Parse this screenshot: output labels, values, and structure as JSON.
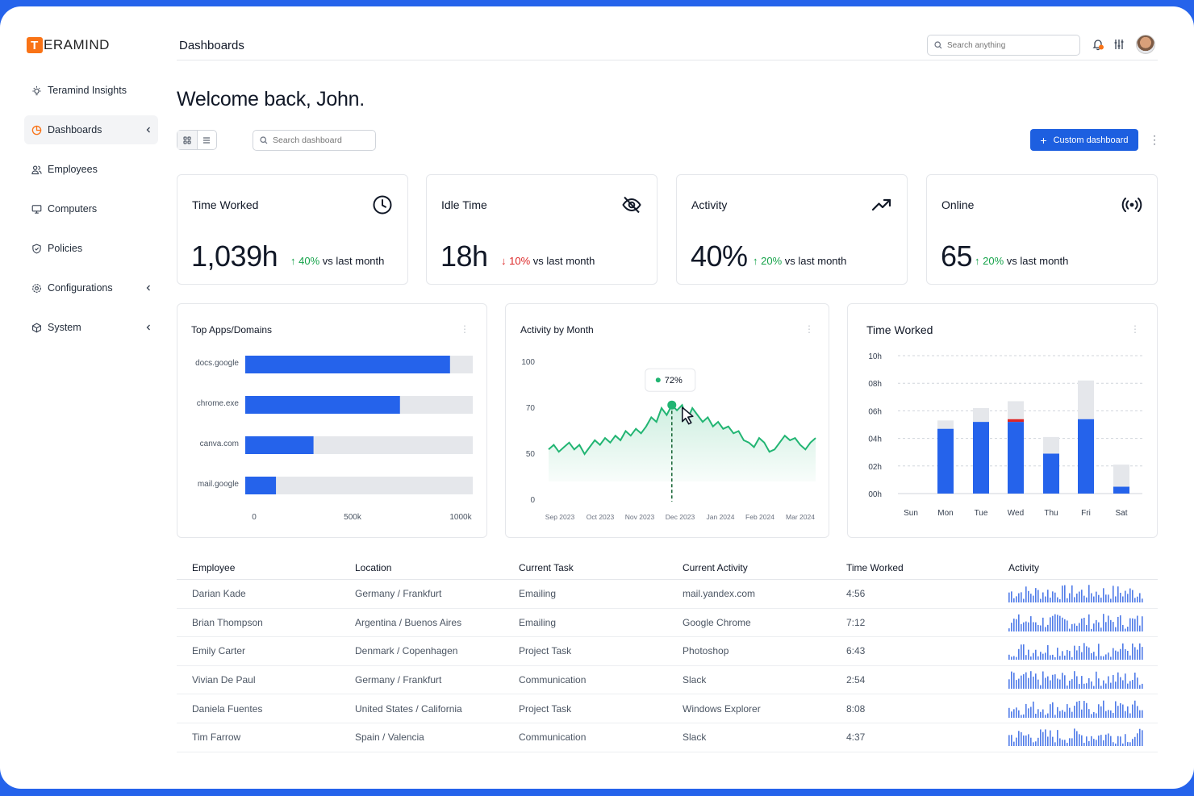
{
  "brand": {
    "logo_letter": "T",
    "logo_rest": "ERAMIND"
  },
  "sidebar": {
    "items": [
      {
        "label": "Teramind Insights",
        "icon": "lightbulb-icon",
        "active": false,
        "chevron": false
      },
      {
        "label": "Dashboards",
        "icon": "pie-chart-icon",
        "active": true,
        "chevron": true
      },
      {
        "label": "Employees",
        "icon": "users-icon",
        "active": false,
        "chevron": false
      },
      {
        "label": "Computers",
        "icon": "monitor-icon",
        "active": false,
        "chevron": false
      },
      {
        "label": "Policies",
        "icon": "shield-icon",
        "active": false,
        "chevron": false
      },
      {
        "label": "Configurations",
        "icon": "gear-icon",
        "active": false,
        "chevron": true
      },
      {
        "label": "System",
        "icon": "cube-icon",
        "active": false,
        "chevron": true
      }
    ]
  },
  "header": {
    "title": "Dashboards",
    "search_placeholder": "Search anything"
  },
  "welcome": "Welcome back, John.",
  "toolbar": {
    "search_placeholder": "Search dashboard",
    "custom_button": "Custom dashboard"
  },
  "kpis": [
    {
      "label": "Time Worked",
      "value": "1,039h",
      "change": "40%",
      "direction": "up",
      "suffix": "vs last month",
      "icon": "clock-icon"
    },
    {
      "label": "Idle Time",
      "value": "18h",
      "change": "10%",
      "direction": "down",
      "suffix": "vs last month",
      "icon": "eye-off-icon"
    },
    {
      "label": "Activity",
      "value": "40%",
      "change": "20%",
      "direction": "up",
      "suffix": "vs last month",
      "icon": "trending-up-icon"
    },
    {
      "label": "Online",
      "value": "65",
      "change": "20%",
      "direction": "up",
      "suffix": "vs last month",
      "icon": "broadcast-icon"
    }
  ],
  "colors": {
    "accent": "#2563eb",
    "up": "#16a34a",
    "down": "#dc2626",
    "green": "#22b573",
    "track": "#e5e7eb"
  },
  "chart_data": [
    {
      "type": "bar",
      "orientation": "horizontal",
      "title": "Top Apps/Domains",
      "categories": [
        "docs.google",
        "chrome.exe",
        "canva.com",
        "mail.google"
      ],
      "values": [
        900000,
        680000,
        300000,
        135000
      ],
      "xlim": [
        0,
        1000000
      ],
      "xtick_labels": [
        "0",
        "500k",
        "1000k"
      ]
    },
    {
      "type": "area",
      "title": "Activity by Month",
      "x_labels": [
        "Sep 2023",
        "Oct 2023",
        "Nov 2023",
        "Dec 2023",
        "Jan 2024",
        "Feb 2024",
        "Mar 2024"
      ],
      "y_ticks": [
        "100",
        "70",
        "50",
        "0"
      ],
      "values": [
        52,
        54,
        51,
        53,
        55,
        52,
        54,
        50,
        53,
        56,
        54,
        57,
        55,
        58,
        56,
        60,
        58,
        61,
        59,
        62,
        66,
        64,
        70,
        67,
        72,
        69,
        72,
        65,
        70,
        67,
        64,
        66,
        62,
        64,
        61,
        62,
        59,
        60,
        56,
        55,
        53,
        57,
        55,
        51,
        52,
        55,
        58,
        56,
        57,
        54,
        52,
        55,
        57
      ],
      "annotation": {
        "label": "72%",
        "x_label": "Dec 2023",
        "value": 72
      }
    },
    {
      "type": "bar",
      "stacked": true,
      "title": "Time Worked",
      "categories": [
        "Sun",
        "Mon",
        "Tue",
        "Wed",
        "Thu",
        "Fri",
        "Sat"
      ],
      "y_tick_labels": [
        "10h",
        "08h",
        "06h",
        "04h",
        "02h",
        "00h"
      ],
      "ylim": [
        0,
        10
      ],
      "series": [
        {
          "color": "#2563eb",
          "values": [
            0,
            4.7,
            5.2,
            5.2,
            2.9,
            5.4,
            0.5
          ]
        },
        {
          "color": "#dc2626",
          "values": [
            0,
            0,
            0,
            0.2,
            0,
            0,
            0
          ]
        },
        {
          "color": "#e5e7eb",
          "values": [
            0,
            0.6,
            1.0,
            1.3,
            1.2,
            2.8,
            1.6
          ]
        }
      ]
    }
  ],
  "table": {
    "headers": [
      "Employee",
      "Location",
      "Current Task",
      "Current Activity",
      "Time Worked",
      "Activity"
    ],
    "rows": [
      {
        "employee": "Darian Kade",
        "location": "Germany / Frankfurt",
        "task": "Emailing",
        "activity": "mail.yandex.com",
        "time": "4:56"
      },
      {
        "employee": "Brian Thompson",
        "location": "Argentina / Buenos Aires",
        "task": "Emailing",
        "activity": "Google Chrome",
        "time": "7:12"
      },
      {
        "employee": "Emily Carter",
        "location": "Denmark / Copenhagen",
        "task": "Project Task",
        "activity": "Photoshop",
        "time": "6:43"
      },
      {
        "employee": "Vivian De Paul",
        "location": "Germany / Frankfurt",
        "task": "Communication",
        "activity": "Slack",
        "time": "2:54"
      },
      {
        "employee": "Daniela Fuentes",
        "location": "United States / California",
        "task": "Project Task",
        "activity": "Windows Explorer",
        "time": "8:08"
      },
      {
        "employee": "Tim Farrow",
        "location": "Spain / Valencia",
        "task": "Communication",
        "activity": "Slack",
        "time": "4:37"
      }
    ]
  }
}
